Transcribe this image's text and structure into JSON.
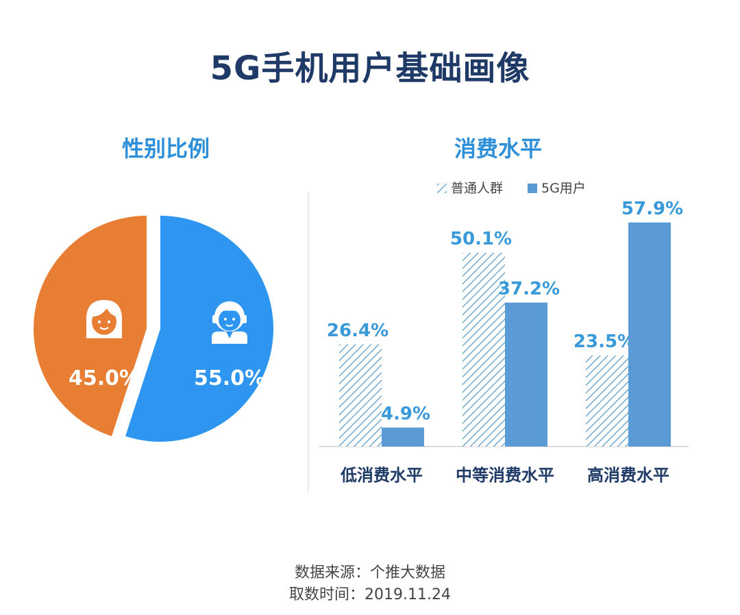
{
  "title": "5G手机用户基础画像",
  "pie": {
    "subtitle": "性别比例",
    "slices": [
      {
        "label": "45.0%",
        "value": 45.0,
        "color": "#e87e33",
        "icon": "female-user-icon"
      },
      {
        "label": "55.0%",
        "value": 55.0,
        "color": "#2e96f0",
        "icon": "male-user-icon"
      }
    ]
  },
  "chart_data": {
    "type": "bar",
    "title": "消费水平",
    "categories": [
      "低消费水平",
      "中等消费水平",
      "高消费水平"
    ],
    "series": [
      {
        "name": "普通人群",
        "values": [
          26.4,
          50.1,
          23.5
        ],
        "style": "hatched",
        "color": "#6fa9cf"
      },
      {
        "name": "5G用户",
        "values": [
          4.9,
          37.2,
          57.9
        ],
        "style": "solid",
        "color": "#5b9bd5"
      }
    ],
    "value_labels": [
      [
        "26.4%",
        "50.1%",
        "23.5%"
      ],
      [
        "4.9%",
        "37.2%",
        "57.9%"
      ]
    ],
    "ylim": [
      0,
      60
    ],
    "legend": "top",
    "grid": false
  },
  "footer": {
    "source": "数据来源：个推大数据",
    "date": "取数时间：2019.11.24"
  },
  "colors": {
    "title": "#1f3a66",
    "subtitle": "#2e8fd9",
    "label": "#3a9ad9"
  }
}
